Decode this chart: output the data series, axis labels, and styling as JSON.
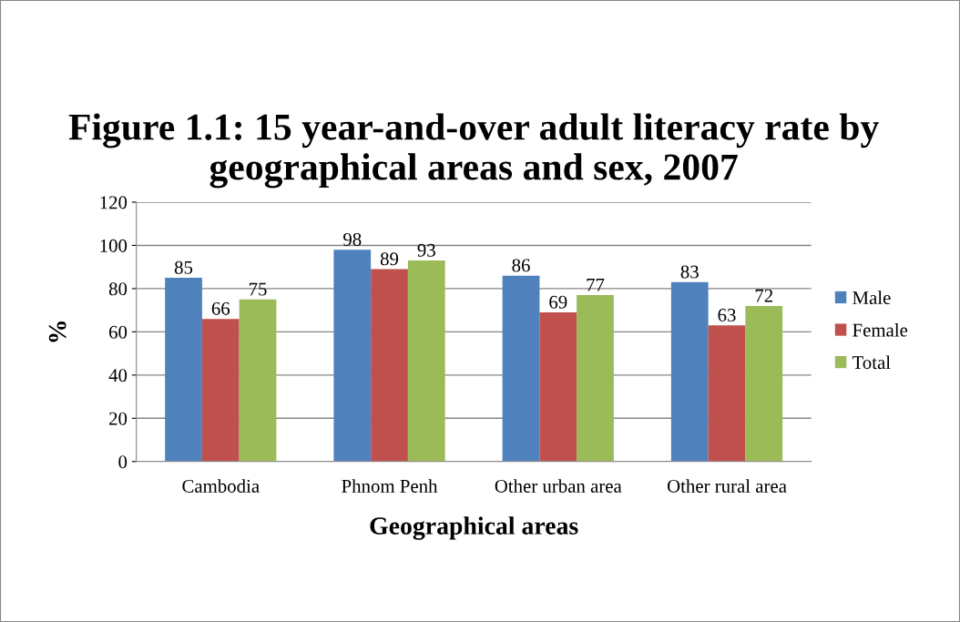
{
  "chart_data": {
    "type": "bar",
    "title": "Figure 1.1: 15 year-and-over adult literacy rate by geographical areas and sex, 2007",
    "xlabel": "Geographical areas",
    "ylabel": "%",
    "categories": [
      "Cambodia",
      "Phnom Penh",
      "Other urban area",
      "Other rural area"
    ],
    "series": [
      {
        "name": "Male",
        "color": "#4f81bd",
        "values": [
          85,
          98,
          86,
          83
        ]
      },
      {
        "name": "Female",
        "color": "#c0504d",
        "values": [
          66,
          89,
          69,
          63
        ]
      },
      {
        "name": "Total",
        "color": "#9bbb59",
        "values": [
          75,
          93,
          77,
          72
        ]
      }
    ],
    "ylim": [
      0,
      120
    ],
    "yticks": [
      0,
      20,
      40,
      60,
      80,
      100,
      120
    ],
    "grid": "y",
    "legend": "right",
    "data_labels": true
  }
}
